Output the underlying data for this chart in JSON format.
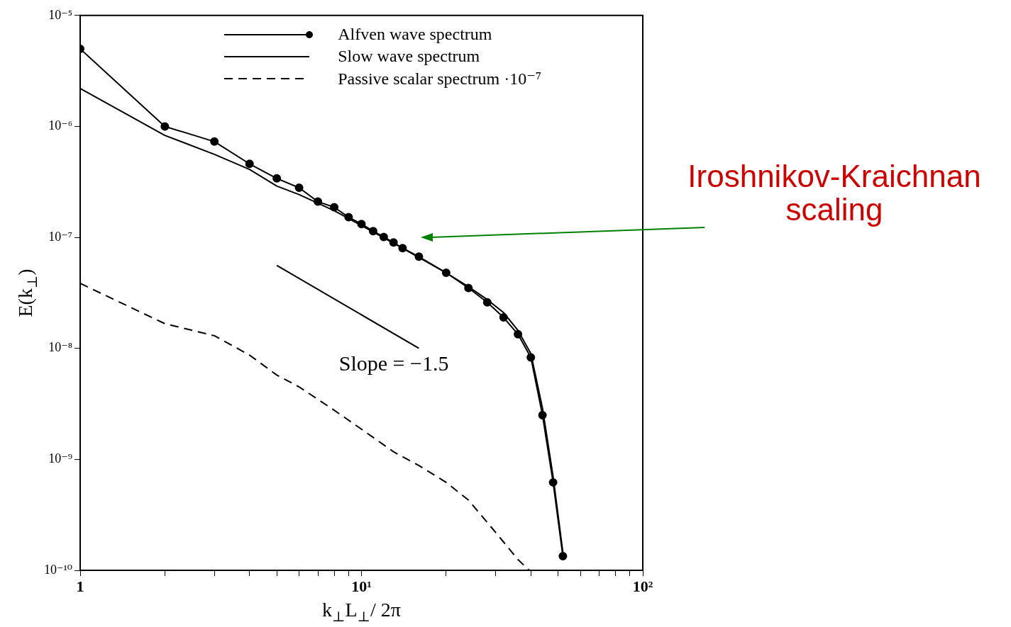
{
  "chart_data": {
    "type": "line",
    "xlabel": "k$_{⊥}$L$_{⊥}$/ 2π",
    "ylabel": "E(k$_{⊥}$)",
    "log": "xy",
    "grid": false,
    "legend": "top right",
    "xlim": [
      1,
      100
    ],
    "ylim": [
      1e-10,
      1e-05
    ],
    "xticks": [
      1,
      {
        "value": 2,
        "label": null
      },
      {
        "value": 3,
        "label": null
      },
      {
        "value": 4,
        "label": null
      },
      {
        "value": 5,
        "label": null
      },
      {
        "value": 6,
        "label": null
      },
      {
        "value": 7,
        "label": null
      },
      {
        "value": 8,
        "label": null
      },
      {
        "value": 9,
        "label": null
      },
      {
        "value": 10,
        "label": "10¹"
      },
      {
        "value": 20,
        "label": null
      },
      {
        "value": 30,
        "label": null
      },
      {
        "value": 40,
        "label": null
      },
      {
        "value": 50,
        "label": null
      },
      {
        "value": 60,
        "label": null
      },
      {
        "value": 70,
        "label": null
      },
      {
        "value": 80,
        "label": null
      },
      {
        "value": 90,
        "label": null
      },
      {
        "value": 100,
        "label": "10²"
      }
    ],
    "yticks": [
      {
        "value": 1e-10,
        "label": "10⁻¹⁰"
      },
      {
        "value": 1e-09,
        "label": "10⁻⁹"
      },
      {
        "value": 1e-08,
        "label": "10⁻⁸"
      },
      {
        "value": 1e-07,
        "label": "10⁻⁷"
      },
      {
        "value": 1e-06,
        "label": "10⁻⁶"
      },
      {
        "value": 1e-05,
        "label": "10⁻⁵"
      }
    ],
    "annotations": [
      "Slope = −1.5",
      "Iroshnikov-Kraichnan\nscaling"
    ],
    "series": [
      {
        "name": "Alfven wave spectrum",
        "color": "#000000",
        "marker": "circle",
        "line_style": "solid",
        "x": [
          1,
          2,
          3,
          4,
          5,
          6,
          7,
          8,
          9,
          10,
          11,
          12,
          13,
          14,
          16,
          20,
          24,
          28,
          32,
          36,
          40,
          44,
          48,
          52
        ],
        "values": [
          5e-06,
          1e-06,
          7.3e-07,
          4.6e-07,
          3.4e-07,
          2.8e-07,
          2.1e-07,
          1.87e-07,
          1.52e-07,
          1.32e-07,
          1.14e-07,
          1.01e-07,
          9e-08,
          8e-08,
          6.7e-08,
          4.8e-08,
          3.5e-08,
          2.6e-08,
          1.9e-08,
          1.34e-08,
          8.3e-09,
          2.5e-09,
          6.2e-10,
          1.34e-10
        ]
      },
      {
        "name": "Slow wave spectrum",
        "color": "#000000",
        "marker": "none",
        "line_style": "solid",
        "x": [
          1,
          2,
          3,
          4,
          5,
          6,
          8,
          10,
          14,
          20,
          24,
          28,
          32,
          36,
          40,
          44,
          48,
          52
        ],
        "values": [
          2.2e-06,
          8.3e-07,
          5.6e-07,
          4.1e-07,
          2.9e-07,
          2.43e-07,
          1.74e-07,
          1.28e-07,
          8e-08,
          4.8e-08,
          3.6e-08,
          2.75e-08,
          2.1e-08,
          1.45e-08,
          9e-09,
          2.9e-09,
          7e-10,
          1.45e-10
        ]
      },
      {
        "name": "Passive scalar spectrum ·10⁻⁷",
        "color": "#000000",
        "marker": "none",
        "line_style": "dashed",
        "x": [
          1,
          2,
          3,
          4,
          5,
          6,
          8,
          10,
          13,
          16,
          20,
          24,
          28,
          32,
          36,
          39.5
        ],
        "values": [
          3.85e-08,
          1.67e-08,
          1.3e-08,
          8.7e-09,
          5.75e-09,
          4.5e-09,
          2.77e-09,
          1.87e-09,
          1.17e-09,
          8.8e-10,
          6.2e-10,
          4.3e-10,
          2.7e-10,
          1.8e-10,
          1.25e-10,
          1e-10
        ]
      },
      {
        "color": "#000000",
        "marker": "none",
        "line_style": "solid",
        "x": [
          5,
          16
        ],
        "values": [
          5.6e-08,
          1e-08
        ]
      }
    ]
  }
}
